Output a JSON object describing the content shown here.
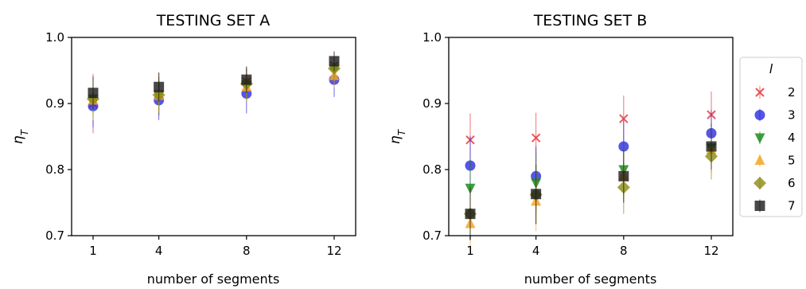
{
  "chart_data": [
    {
      "type": "scatter",
      "title": "TESTING SET A",
      "xlabel": "number of segments",
      "ylabel": "ηT",
      "ylim": [
        0.7,
        1.0
      ],
      "yticks": [
        "0.7",
        "0.8",
        "0.9",
        "1.0"
      ],
      "x": [
        1,
        4,
        8,
        12
      ],
      "xticks": [
        "1",
        "4",
        "8",
        "12"
      ],
      "grid": false,
      "series": [
        {
          "name": "2",
          "marker": "x",
          "color": "#e8383d",
          "y": [
            0.9,
            0.914,
            0.933,
            0.957
          ],
          "err": [
            0.045,
            0.032,
            0.022,
            0.02
          ]
        },
        {
          "name": "3",
          "marker": "circle",
          "color": "#2a2ae0",
          "y": [
            0.896,
            0.905,
            0.915,
            0.936
          ],
          "err": [
            0.032,
            0.03,
            0.03,
            0.026
          ]
        },
        {
          "name": "4",
          "marker": "triangle-down",
          "color": "#1e8c1e",
          "y": [
            0.907,
            0.912,
            0.928,
            0.952
          ],
          "err": [
            0.03,
            0.028,
            0.025,
            0.02
          ]
        },
        {
          "name": "5",
          "marker": "triangle-up",
          "color": "#f5a623",
          "y": [
            0.905,
            0.912,
            0.925,
            0.942
          ],
          "err": [
            0.03,
            0.026,
            0.022,
            0.018
          ]
        },
        {
          "name": "6",
          "marker": "diamond",
          "color": "#8a8a12",
          "y": [
            0.907,
            0.913,
            0.93,
            0.953
          ],
          "err": [
            0.028,
            0.026,
            0.022,
            0.018
          ]
        },
        {
          "name": "7",
          "marker": "square",
          "color": "#1a1a1a",
          "y": [
            0.916,
            0.925,
            0.936,
            0.964
          ],
          "err": [
            0.025,
            0.022,
            0.02,
            0.015
          ]
        }
      ]
    },
    {
      "type": "scatter",
      "title": "TESTING SET B",
      "xlabel": "number of segments",
      "ylabel": "ηT",
      "ylim": [
        0.7,
        1.0
      ],
      "yticks": [
        "0.7",
        "0.8",
        "0.9",
        "1.0"
      ],
      "x": [
        1,
        4,
        8,
        12
      ],
      "xticks": [
        "1",
        "4",
        "8",
        "12"
      ],
      "grid": false,
      "legend": {
        "title": "l",
        "position": "right"
      },
      "series": [
        {
          "name": "2",
          "marker": "x",
          "color": "#e8383d",
          "y": [
            0.845,
            0.848,
            0.877,
            0.883
          ],
          "err": [
            0.04,
            0.038,
            0.035,
            0.035
          ]
        },
        {
          "name": "3",
          "marker": "circle",
          "color": "#2a2ae0",
          "y": [
            0.806,
            0.79,
            0.835,
            0.855
          ],
          "err": [
            0.045,
            0.045,
            0.04,
            0.035
          ]
        },
        {
          "name": "4",
          "marker": "triangle-down",
          "color": "#1e8c1e",
          "y": [
            0.772,
            0.78,
            0.8,
            0.833
          ],
          "err": [
            0.045,
            0.045,
            0.04,
            0.035
          ]
        },
        {
          "name": "5",
          "marker": "triangle-up",
          "color": "#f5a623",
          "y": [
            0.718,
            0.752,
            0.79,
            0.83
          ],
          "err": [
            0.04,
            0.045,
            0.04,
            0.035
          ]
        },
        {
          "name": "6",
          "marker": "diamond",
          "color": "#8a8a12",
          "y": [
            0.733,
            0.762,
            0.773,
            0.82
          ],
          "err": [
            0.04,
            0.045,
            0.04,
            0.035
          ]
        },
        {
          "name": "7",
          "marker": "square",
          "color": "#1a1a1a",
          "y": [
            0.733,
            0.763,
            0.79,
            0.835
          ],
          "err": [
            0.04,
            0.045,
            0.04,
            0.035
          ]
        }
      ]
    }
  ]
}
